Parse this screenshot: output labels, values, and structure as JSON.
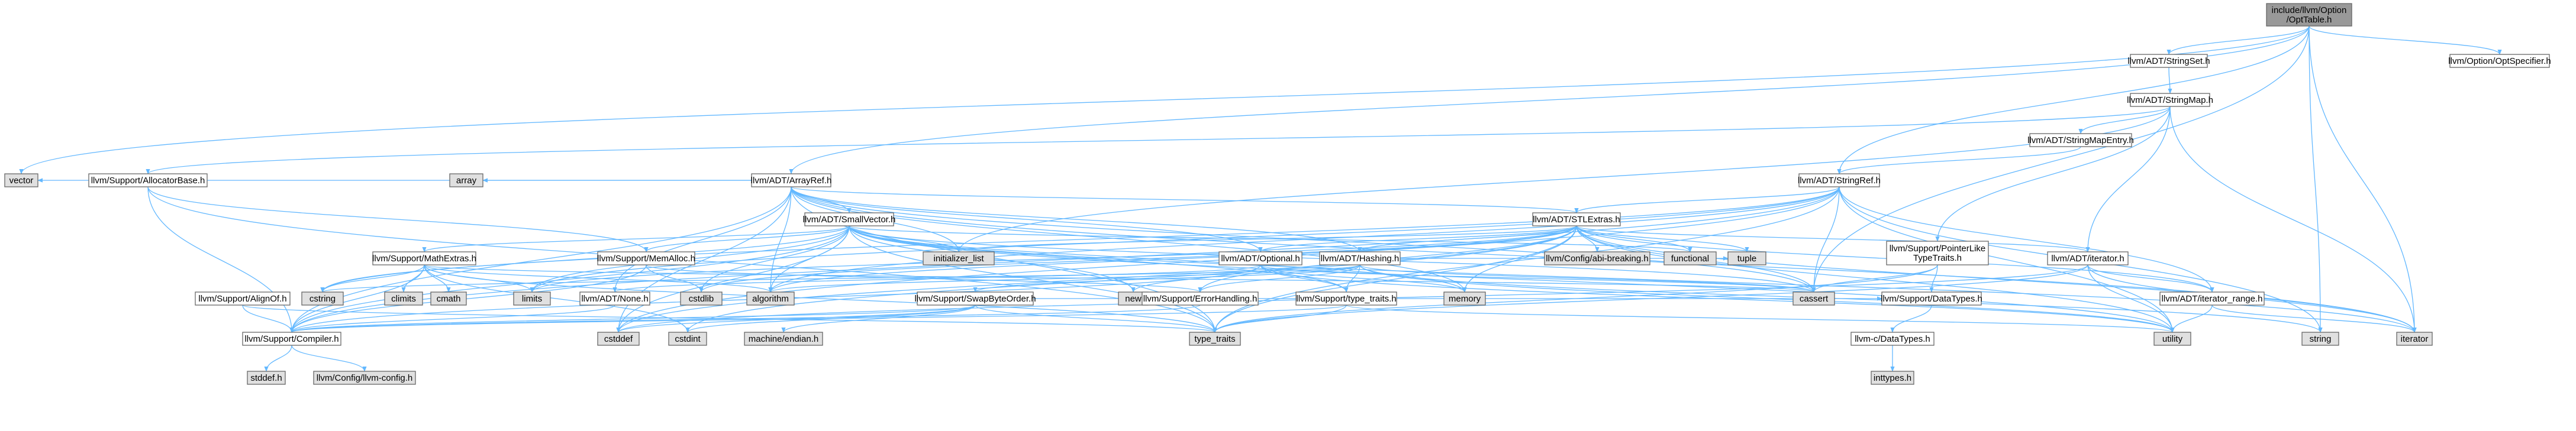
{
  "colors": {
    "root_fill": "#999999",
    "node_fill": "#ffffff",
    "external_fill": "#e0e0e0",
    "missing_border": "#ff0000",
    "edge": "#63b8ff"
  },
  "nodes": [
    {
      "id": "root",
      "label": [
        "include/llvm/Option",
        "/OptTable.h"
      ],
      "kind": "root"
    },
    {
      "id": "stringset",
      "label": [
        "llvm/ADT/StringSet.h"
      ],
      "kind": "header"
    },
    {
      "id": "optspecifier",
      "label": [
        "llvm/Option/OptSpecifier.h"
      ],
      "kind": "header"
    },
    {
      "id": "stringmap",
      "label": [
        "llvm/ADT/StringMap.h"
      ],
      "kind": "header"
    },
    {
      "id": "stringmapentry",
      "label": [
        "llvm/ADT/StringMapEntry.h"
      ],
      "kind": "header"
    },
    {
      "id": "arrayref",
      "label": [
        "llvm/ADT/ArrayRef.h"
      ],
      "kind": "header"
    },
    {
      "id": "stringref",
      "label": [
        "llvm/ADT/StringRef.h"
      ],
      "kind": "header"
    },
    {
      "id": "vector",
      "label": [
        "vector"
      ],
      "kind": "external"
    },
    {
      "id": "allocatorbase",
      "label": [
        "llvm/Support/AllocatorBase.h"
      ],
      "kind": "header"
    },
    {
      "id": "array",
      "label": [
        "array"
      ],
      "kind": "external"
    },
    {
      "id": "smallvector",
      "label": [
        "llvm/ADT/SmallVector.h"
      ],
      "kind": "header"
    },
    {
      "id": "stlextras",
      "label": [
        "llvm/ADT/STLExtras.h"
      ],
      "kind": "header"
    },
    {
      "id": "initializer_list",
      "label": [
        "initializer_list"
      ],
      "kind": "external"
    },
    {
      "id": "abibreaking",
      "label": [
        "llvm/Config/abi-breaking.h"
      ],
      "kind": "external"
    },
    {
      "id": "functional",
      "label": [
        "functional"
      ],
      "kind": "external"
    },
    {
      "id": "tuple",
      "label": [
        "tuple"
      ],
      "kind": "external"
    },
    {
      "id": "pointerlike",
      "label": [
        "llvm/Support/PointerLike",
        "TypeTraits.h"
      ],
      "kind": "header"
    },
    {
      "id": "iteratorh",
      "label": [
        "llvm/ADT/iterator.h"
      ],
      "kind": "header"
    },
    {
      "id": "mathextras",
      "label": [
        "llvm/Support/MathExtras.h"
      ],
      "kind": "header"
    },
    {
      "id": "memalloc",
      "label": [
        "llvm/Support/MemAlloc.h"
      ],
      "kind": "header"
    },
    {
      "id": "hashing",
      "label": [
        "llvm/ADT/Hashing.h"
      ],
      "kind": "header"
    },
    {
      "id": "optional",
      "label": [
        "llvm/ADT/Optional.h"
      ],
      "kind": "header"
    },
    {
      "id": "climits",
      "label": [
        "climits"
      ],
      "kind": "external"
    },
    {
      "id": "cmath",
      "label": [
        "cmath"
      ],
      "kind": "external"
    },
    {
      "id": "cstring",
      "label": [
        "cstring"
      ],
      "kind": "external"
    },
    {
      "id": "limits",
      "label": [
        "limits"
      ],
      "kind": "external"
    },
    {
      "id": "alignof",
      "label": [
        "llvm/Support/AlignOf.h"
      ],
      "kind": "header"
    },
    {
      "id": "noneh",
      "label": [
        "llvm/ADT/None.h"
      ],
      "kind": "header"
    },
    {
      "id": "cstdlib",
      "label": [
        "cstdlib"
      ],
      "kind": "external"
    },
    {
      "id": "algorithm",
      "label": [
        "algorithm"
      ],
      "kind": "external"
    },
    {
      "id": "new",
      "label": [
        "new"
      ],
      "kind": "external"
    },
    {
      "id": "errorhandling",
      "label": [
        "llvm/Support/ErrorHandling.h"
      ],
      "kind": "header"
    },
    {
      "id": "swapbyteorder",
      "label": [
        "llvm/Support/SwapByteOrder.h"
      ],
      "kind": "header"
    },
    {
      "id": "typetraitsh",
      "label": [
        "llvm/Support/type_traits.h"
      ],
      "kind": "header"
    },
    {
      "id": "memory",
      "label": [
        "memory"
      ],
      "kind": "external"
    },
    {
      "id": "cassert",
      "label": [
        "cassert"
      ],
      "kind": "external"
    },
    {
      "id": "datatypes",
      "label": [
        "llvm/Support/DataTypes.h"
      ],
      "kind": "header"
    },
    {
      "id": "iteratorrange",
      "label": [
        "llvm/ADT/iterator_range.h"
      ],
      "kind": "header"
    },
    {
      "id": "utility",
      "label": [
        "utility"
      ],
      "kind": "external"
    },
    {
      "id": "string",
      "label": [
        "string"
      ],
      "kind": "external"
    },
    {
      "id": "iterator",
      "label": [
        "iterator"
      ],
      "kind": "external"
    },
    {
      "id": "compiler",
      "label": [
        "llvm/Support/Compiler.h"
      ],
      "kind": "header"
    },
    {
      "id": "cstddef",
      "label": [
        "cstddef"
      ],
      "kind": "external"
    },
    {
      "id": "cstdint",
      "label": [
        "cstdint"
      ],
      "kind": "external"
    },
    {
      "id": "machineendian",
      "label": [
        "machine/endian.h"
      ],
      "kind": "external"
    },
    {
      "id": "type_traits",
      "label": [
        "type_traits"
      ],
      "kind": "external"
    },
    {
      "id": "cdatatypes",
      "label": [
        "llvm-c/DataTypes.h"
      ],
      "kind": "missing"
    },
    {
      "id": "stddef",
      "label": [
        "stddef.h"
      ],
      "kind": "external"
    },
    {
      "id": "llvmconfig",
      "label": [
        "llvm/Config/llvm-config.h"
      ],
      "kind": "external"
    },
    {
      "id": "inttypes",
      "label": [
        "inttypes.h"
      ],
      "kind": "external"
    }
  ],
  "edges": [
    [
      "root",
      "stringset"
    ],
    [
      "root",
      "optspecifier"
    ],
    [
      "root",
      "arrayref"
    ],
    [
      "root",
      "stringref"
    ],
    [
      "root",
      "vector"
    ],
    [
      "root",
      "cassert"
    ],
    [
      "root",
      "string"
    ],
    [
      "root",
      "iterator"
    ],
    [
      "stringset",
      "stringmap"
    ],
    [
      "stringmap",
      "stringmapentry"
    ],
    [
      "stringmap",
      "allocatorbase"
    ],
    [
      "stringmap",
      "pointerlike"
    ],
    [
      "stringmap",
      "iteratorh"
    ],
    [
      "stringmap",
      "initializer_list"
    ],
    [
      "stringmap",
      "iterator"
    ],
    [
      "stringmapentry",
      "stringref"
    ],
    [
      "stringref",
      "stlextras"
    ],
    [
      "stringref",
      "compiler"
    ],
    [
      "stringref",
      "algorithm"
    ],
    [
      "stringref",
      "cassert"
    ],
    [
      "stringref",
      "cstddef"
    ],
    [
      "stringref",
      "cstring"
    ],
    [
      "stringref",
      "limits"
    ],
    [
      "stringref",
      "string"
    ],
    [
      "stringref",
      "type_traits"
    ],
    [
      "stringref",
      "utility"
    ],
    [
      "stringref",
      "iteratorrange"
    ],
    [
      "arrayref",
      "hashing"
    ],
    [
      "arrayref",
      "smallvector"
    ],
    [
      "arrayref",
      "stlextras"
    ],
    [
      "arrayref",
      "compiler"
    ],
    [
      "arrayref",
      "algorithm"
    ],
    [
      "arrayref",
      "array"
    ],
    [
      "arrayref",
      "cassert"
    ],
    [
      "arrayref",
      "cstddef"
    ],
    [
      "arrayref",
      "initializer_list"
    ],
    [
      "arrayref",
      "iterator"
    ],
    [
      "arrayref",
      "memory"
    ],
    [
      "arrayref",
      "type_traits"
    ],
    [
      "arrayref",
      "vector"
    ],
    [
      "arrayref",
      "noneh"
    ],
    [
      "arrayref",
      "optional"
    ],
    [
      "allocatorbase",
      "compiler"
    ],
    [
      "allocatorbase",
      "memalloc"
    ],
    [
      "allocatorbase",
      "type_traits"
    ],
    [
      "memalloc",
      "compiler"
    ],
    [
      "memalloc",
      "errorhandling"
    ],
    [
      "memalloc",
      "cstdlib"
    ],
    [
      "smallvector",
      "compiler"
    ],
    [
      "smallvector",
      "mathextras"
    ],
    [
      "smallvector",
      "memalloc"
    ],
    [
      "smallvector",
      "typetraitsh"
    ],
    [
      "smallvector",
      "algorithm"
    ],
    [
      "smallvector",
      "cassert"
    ],
    [
      "smallvector",
      "cstddef"
    ],
    [
      "smallvector",
      "cstdlib"
    ],
    [
      "smallvector",
      "cstring"
    ],
    [
      "smallvector",
      "functional"
    ],
    [
      "smallvector",
      "initializer_list"
    ],
    [
      "smallvector",
      "iterator"
    ],
    [
      "smallvector",
      "limits"
    ],
    [
      "smallvector",
      "memory"
    ],
    [
      "smallvector",
      "new"
    ],
    [
      "smallvector",
      "type_traits"
    ],
    [
      "smallvector",
      "utility"
    ],
    [
      "stlextras",
      "hashing"
    ],
    [
      "stlextras",
      "optional"
    ],
    [
      "stlextras",
      "iteratorh"
    ],
    [
      "stlextras",
      "iteratorrange"
    ],
    [
      "stlextras",
      "abibreaking"
    ],
    [
      "stlextras",
      "errorhandling"
    ],
    [
      "stlextras",
      "algorithm"
    ],
    [
      "stlextras",
      "cassert"
    ],
    [
      "stlextras",
      "cstddef"
    ],
    [
      "stlextras",
      "cstdint"
    ],
    [
      "stlextras",
      "cstdlib"
    ],
    [
      "stlextras",
      "functional"
    ],
    [
      "stlextras",
      "initializer_list"
    ],
    [
      "stlextras",
      "iterator"
    ],
    [
      "stlextras",
      "limits"
    ],
    [
      "stlextras",
      "memory"
    ],
    [
      "stlextras",
      "tuple"
    ],
    [
      "stlextras",
      "type_traits"
    ],
    [
      "stlextras",
      "utility"
    ],
    [
      "mathextras",
      "compiler"
    ],
    [
      "mathextras",
      "algorithm"
    ],
    [
      "mathextras",
      "cassert"
    ],
    [
      "mathextras",
      "climits"
    ],
    [
      "mathextras",
      "cmath"
    ],
    [
      "mathextras",
      "cstdint"
    ],
    [
      "mathextras",
      "cstring"
    ],
    [
      "mathextras",
      "limits"
    ],
    [
      "mathextras",
      "type_traits"
    ],
    [
      "hashing",
      "errorhandling"
    ],
    [
      "hashing",
      "swapbyteorder"
    ],
    [
      "hashing",
      "typetraitsh"
    ],
    [
      "hashing",
      "algorithm"
    ],
    [
      "hashing",
      "cassert"
    ],
    [
      "hashing",
      "cstring"
    ],
    [
      "hashing",
      "string"
    ],
    [
      "hashing",
      "tuple"
    ],
    [
      "hashing",
      "utility"
    ],
    [
      "optional",
      "noneh"
    ],
    [
      "optional",
      "compiler"
    ],
    [
      "optional",
      "typetraitsh"
    ],
    [
      "optional",
      "cassert"
    ],
    [
      "optional",
      "memory"
    ],
    [
      "optional",
      "new"
    ],
    [
      "optional",
      "utility"
    ],
    [
      "alignof",
      "compiler"
    ],
    [
      "alignof",
      "type_traits"
    ],
    [
      "errorhandling",
      "compiler"
    ],
    [
      "swapbyteorder",
      "compiler"
    ],
    [
      "swapbyteorder",
      "datatypes"
    ],
    [
      "swapbyteorder",
      "cstddef"
    ],
    [
      "swapbyteorder",
      "cstdint"
    ],
    [
      "swapbyteorder",
      "type_traits"
    ],
    [
      "swapbyteorder",
      "machineendian"
    ],
    [
      "typetraitsh",
      "compiler"
    ],
    [
      "typetraitsh",
      "type_traits"
    ],
    [
      "typetraitsh",
      "utility"
    ],
    [
      "pointerlike",
      "datatypes"
    ],
    [
      "pointerlike",
      "cassert"
    ],
    [
      "pointerlike",
      "type_traits"
    ],
    [
      "iteratorh",
      "iteratorrange"
    ],
    [
      "iteratorh",
      "cstddef"
    ],
    [
      "iteratorh",
      "iterator"
    ],
    [
      "iteratorh",
      "type_traits"
    ],
    [
      "iteratorh",
      "utility"
    ],
    [
      "iteratorrange",
      "utility"
    ],
    [
      "iteratorrange",
      "iterator"
    ],
    [
      "datatypes",
      "cdatatypes"
    ],
    [
      "cdatatypes",
      "inttypes"
    ],
    [
      "compiler",
      "llvmconfig"
    ],
    [
      "compiler",
      "stddef"
    ],
    [
      "noneh",
      "compiler"
    ]
  ]
}
